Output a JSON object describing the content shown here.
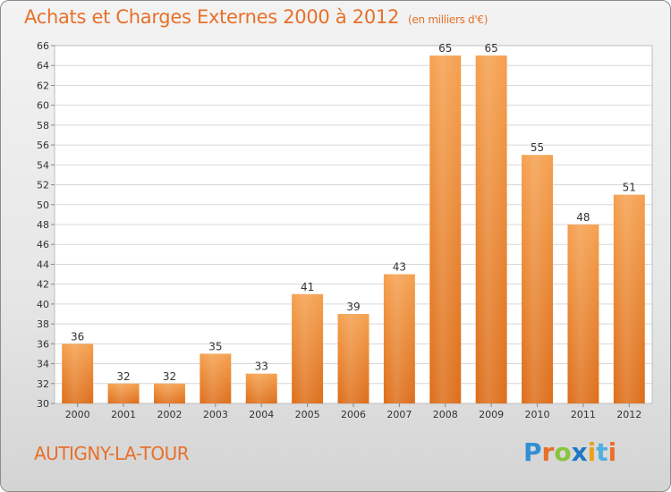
{
  "chart_title": "Achats et Charges Externes 2000 à 2012",
  "chart_unit": "(en milliers d'€)",
  "commune_name": "AUTIGNY-LA-TOUR",
  "logo": {
    "letters": [
      "P",
      "r",
      "o",
      "x",
      "i",
      "t",
      "i"
    ],
    "colors": [
      "#2f8fd6",
      "#e8702a",
      "#8ac43f",
      "#1e78c8",
      "#e9a21e",
      "#4fb0e0",
      "#e8702a"
    ]
  },
  "chart_data": {
    "type": "bar",
    "title": "Achats et Charges Externes 2000 à 2012",
    "subtitle": "(en milliers d'€)",
    "categories": [
      "2000",
      "2001",
      "2002",
      "2003",
      "2004",
      "2005",
      "2006",
      "2007",
      "2008",
      "2009",
      "2010",
      "2011",
      "2012"
    ],
    "values": [
      36,
      32,
      32,
      35,
      33,
      41,
      39,
      43,
      65,
      65,
      55,
      48,
      51
    ],
    "ylim": [
      30,
      66
    ],
    "yticks": [
      30,
      32,
      34,
      36,
      38,
      40,
      42,
      44,
      46,
      48,
      50,
      52,
      54,
      56,
      58,
      60,
      62,
      64,
      66
    ],
    "grid": true,
    "data_labels": true,
    "bar_color": "#e8822e"
  }
}
